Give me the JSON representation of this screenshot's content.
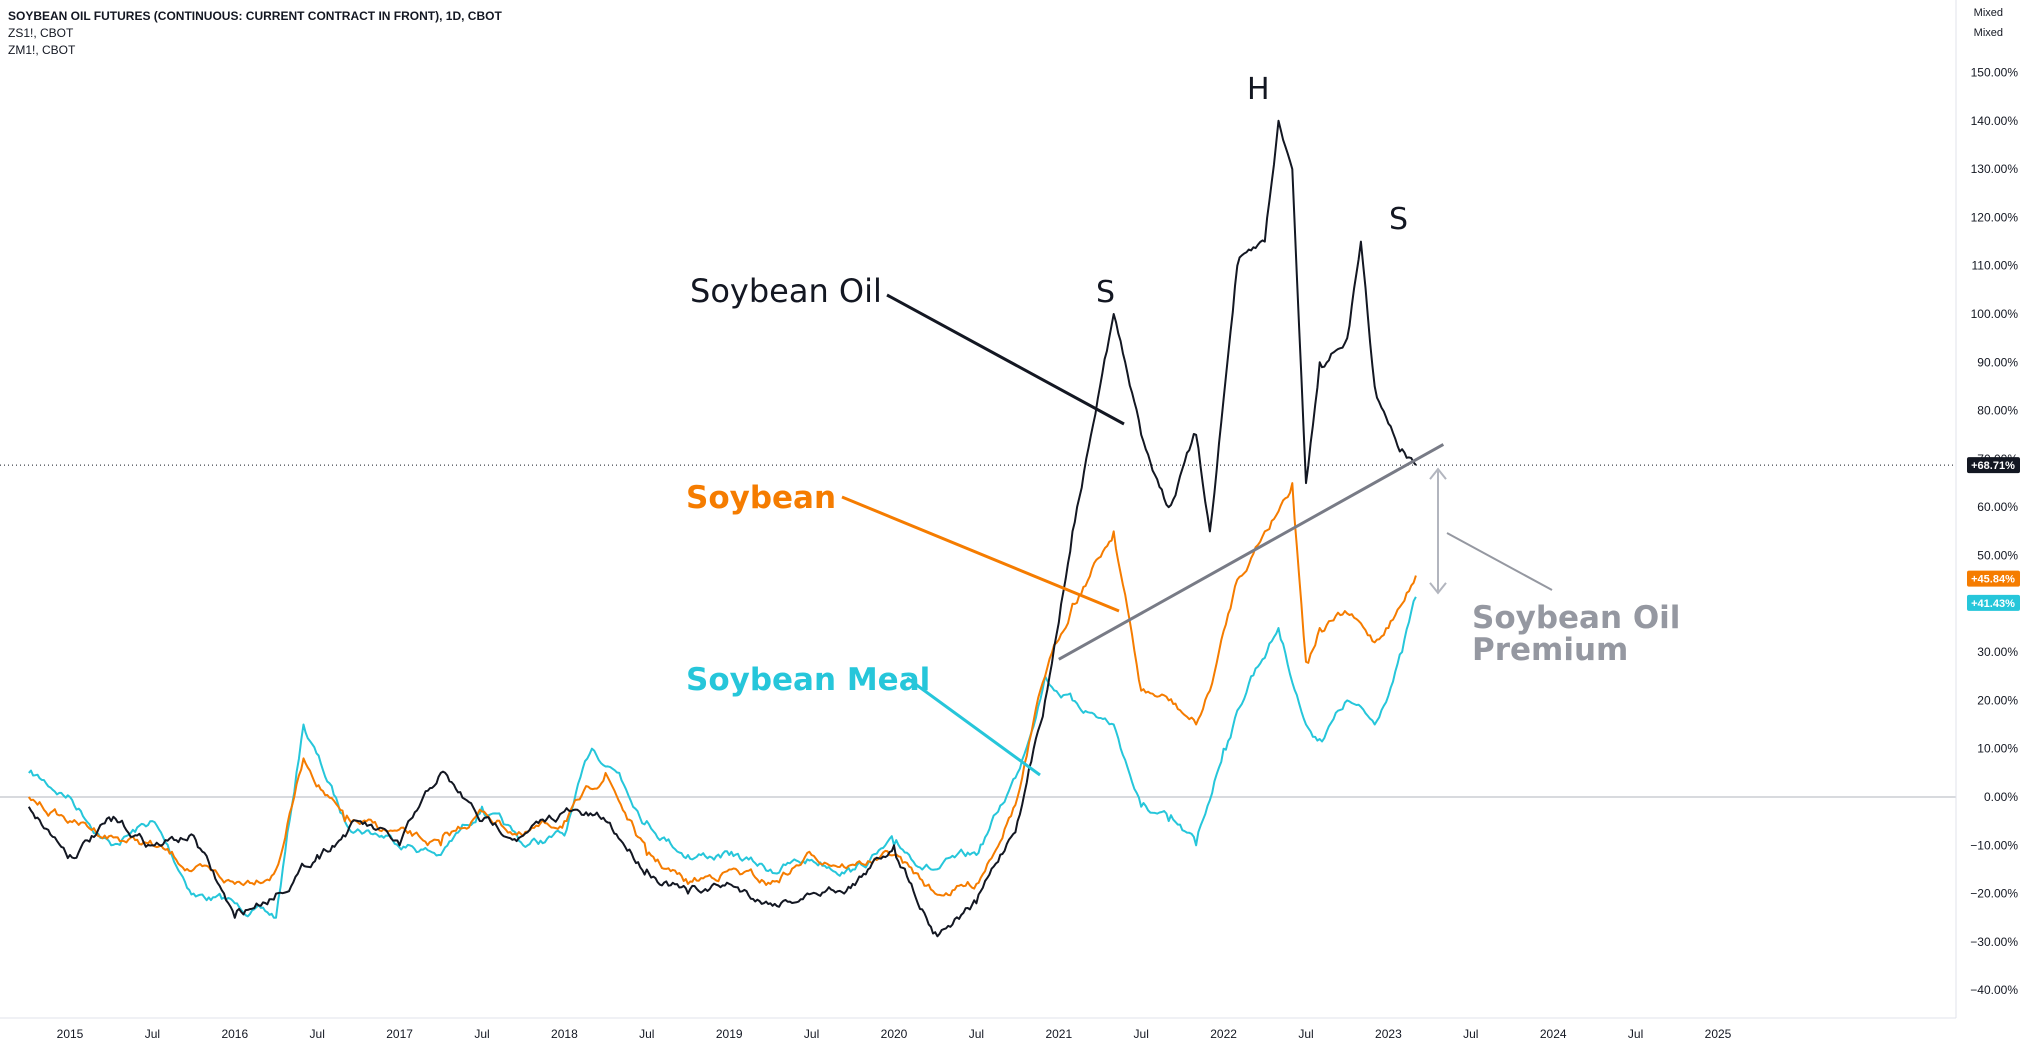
{
  "header": {
    "title": "SOYBEAN OIL FUTURES (CONTINUOUS: CURRENT CONTRACT IN FRONT), 1D, CBOT",
    "series_2": "ZS1!, CBOT",
    "series_3": "ZM1!, CBOT"
  },
  "scale_modes": [
    "Mixed",
    "Mixed"
  ],
  "colors": {
    "soybean_oil": "#131722",
    "soybean": "#f57c00",
    "soybean_meal": "#26c6da",
    "trendline": "#787b86",
    "premium_text": "#9598a1"
  },
  "annotations": {
    "soybean_oil": "Soybean Oil",
    "soybean": "Soybean",
    "soybean_meal": "Soybean Meal",
    "shoulder_left": "S",
    "head": "H",
    "shoulder_right": "S",
    "premium_line1": "Soybean Oil",
    "premium_line2": "Premium"
  },
  "chart_data": {
    "type": "line",
    "xlabel": "",
    "ylabel": "",
    "y_unit": "%",
    "ylim": [
      -43,
      152
    ],
    "xlim": [
      "2014-09",
      "2025-07"
    ],
    "x_ticks": [
      "2015",
      "Jul",
      "2016",
      "Jul",
      "2017",
      "Jul",
      "2018",
      "Jul",
      "2019",
      "Jul",
      "2020",
      "Jul",
      "2021",
      "Jul",
      "2022",
      "Jul",
      "2023",
      "Jul",
      "2024",
      "Jul",
      "2025"
    ],
    "y_ticks": [
      "150.00%",
      "140.00%",
      "130.00%",
      "120.00%",
      "110.00%",
      "100.00%",
      "90.00%",
      "80.00%",
      "70.00%",
      "60.00%",
      "50.00%",
      "40.00%",
      "30.00%",
      "20.00%",
      "10.00%",
      "0.00%",
      "−10.00%",
      "−20.00%",
      "−30.00%",
      "−40.00%"
    ],
    "grid": false,
    "last_value_labels": [
      "+68.71%",
      "+45.84%",
      "+41.43%"
    ],
    "series": [
      {
        "name": "SOYBEAN OIL FUTURES (CONTINUOUS: CURRENT CONTRACT IN FRONT), 1D, CBOT",
        "x": [
          "2014-10",
          "2015-01",
          "2015-04",
          "2015-07",
          "2015-10",
          "2016-01",
          "2016-04",
          "2016-07",
          "2016-10",
          "2017-01",
          "2017-04",
          "2017-07",
          "2017-10",
          "2018-01",
          "2018-04",
          "2018-07",
          "2018-10",
          "2019-01",
          "2019-04",
          "2019-07",
          "2019-10",
          "2020-01",
          "2020-04",
          "2020-07",
          "2020-10",
          "2020-12",
          "2021-02",
          "2021-04",
          "2021-05",
          "2021-07",
          "2021-09",
          "2021-11",
          "2021-12",
          "2022-02",
          "2022-04",
          "2022-05",
          "2022-06",
          "2022-07",
          "2022-08",
          "2022-10",
          "2022-11",
          "2022-12",
          "2023-02",
          "2023-03"
        ],
        "y": [
          -2,
          -12,
          -5,
          -10,
          -8,
          -25,
          -20,
          -12,
          -5,
          -10,
          5,
          -5,
          -8,
          -3,
          -5,
          -15,
          -20,
          -18,
          -22,
          -20,
          -18,
          -10,
          -28,
          -22,
          -5,
          20,
          55,
          85,
          100,
          75,
          60,
          75,
          55,
          110,
          115,
          140,
          130,
          65,
          90,
          95,
          115,
          85,
          72,
          68.71
        ]
      },
      {
        "name": "ZS1!, CBOT",
        "x": [
          "2014-10",
          "2015-01",
          "2015-04",
          "2015-07",
          "2015-10",
          "2016-01",
          "2016-04",
          "2016-06",
          "2016-09",
          "2016-12",
          "2017-04",
          "2017-07",
          "2017-10",
          "2018-01",
          "2018-04",
          "2018-07",
          "2018-10",
          "2019-01",
          "2019-04",
          "2019-07",
          "2019-10",
          "2020-01",
          "2020-04",
          "2020-07",
          "2020-10",
          "2020-12",
          "2021-02",
          "2021-05",
          "2021-07",
          "2021-09",
          "2021-11",
          "2021-12",
          "2022-02",
          "2022-04",
          "2022-06",
          "2022-07",
          "2022-08",
          "2022-10",
          "2022-12",
          "2023-02",
          "2023-03"
        ],
        "y": [
          0,
          -5,
          -8,
          -10,
          -15,
          -18,
          -15,
          8,
          -5,
          -7,
          -10,
          -3,
          -8,
          -5,
          5,
          -12,
          -18,
          -15,
          -18,
          -12,
          -14,
          -12,
          -20,
          -18,
          0,
          25,
          40,
          55,
          22,
          20,
          15,
          22,
          45,
          55,
          65,
          28,
          35,
          38,
          32,
          40,
          45.84
        ]
      },
      {
        "name": "ZM1!, CBOT",
        "x": [
          "2014-10",
          "2015-01",
          "2015-04",
          "2015-07",
          "2015-10",
          "2016-01",
          "2016-04",
          "2016-06",
          "2016-09",
          "2016-12",
          "2017-04",
          "2017-07",
          "2017-10",
          "2018-01",
          "2018-03",
          "2018-05",
          "2018-07",
          "2018-10",
          "2019-01",
          "2019-04",
          "2019-07",
          "2019-10",
          "2020-01",
          "2020-04",
          "2020-07",
          "2020-10",
          "2020-12",
          "2021-02",
          "2021-05",
          "2021-07",
          "2021-09",
          "2021-11",
          "2022-01",
          "2022-03",
          "2022-05",
          "2022-07",
          "2022-08",
          "2022-10",
          "2022-12",
          "2023-02",
          "2023-03"
        ],
        "y": [
          5,
          0,
          -10,
          -5,
          -20,
          -22,
          -25,
          15,
          -5,
          -8,
          -12,
          -2,
          -10,
          -8,
          10,
          5,
          -5,
          -12,
          -12,
          -15,
          -13,
          -15,
          -10,
          -15,
          -12,
          5,
          25,
          20,
          15,
          -2,
          -5,
          -10,
          10,
          25,
          35,
          15,
          12,
          20,
          15,
          30,
          41.43
        ]
      }
    ]
  }
}
